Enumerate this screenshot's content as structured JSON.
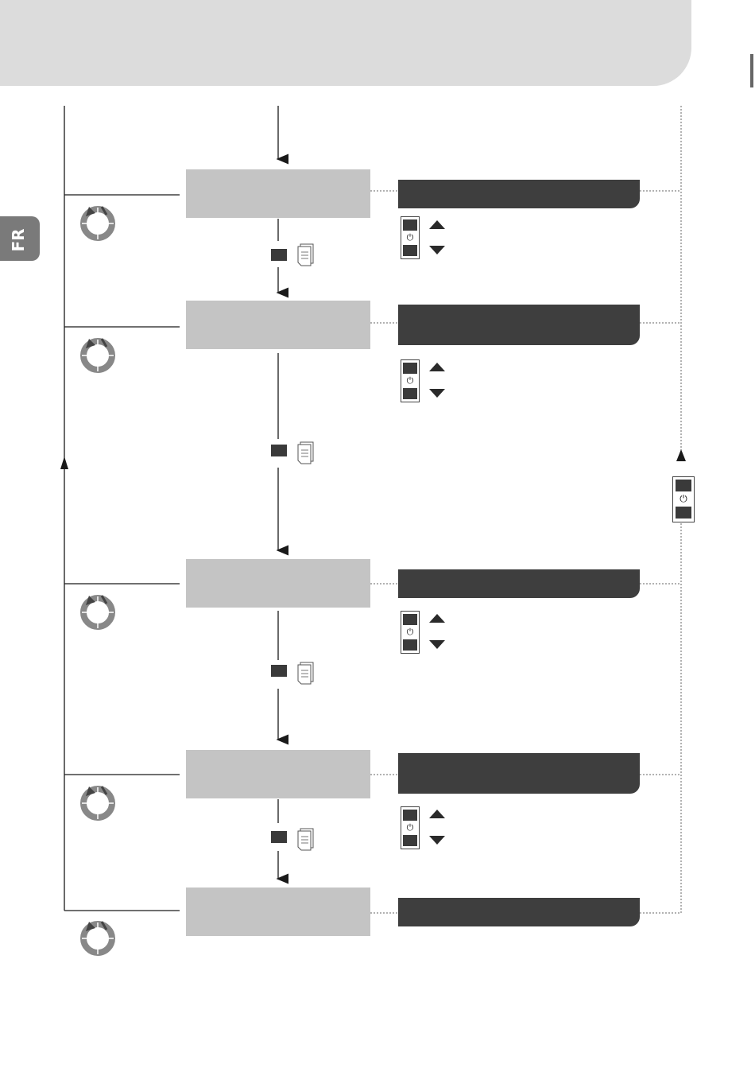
{
  "tab": {
    "label": "FR"
  },
  "icons": {
    "power": "⏻",
    "step_icon": "cycle-arrow-icon",
    "menu_icon": "document-icon",
    "nav_icon": "up-down-arrows-icon"
  },
  "colors": {
    "header": "#dcdcdc",
    "step_box": "#c4c4c4",
    "bar": "#3e3e3e",
    "tab": "#7a7a7a"
  },
  "steps": [
    {
      "box": "",
      "bar": ""
    },
    {
      "box": "",
      "bar": ""
    },
    {
      "box": "",
      "bar": ""
    },
    {
      "box": "",
      "bar": ""
    },
    {
      "box": "",
      "bar": ""
    }
  ]
}
